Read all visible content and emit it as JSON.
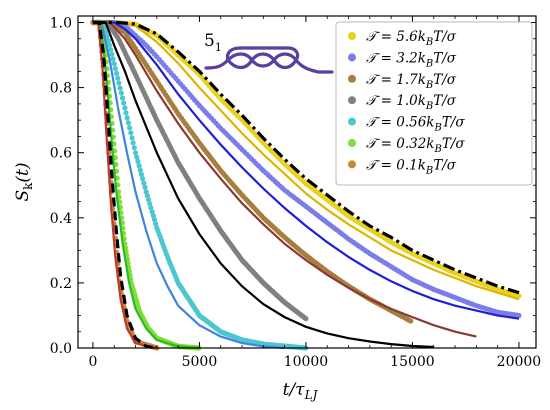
{
  "chart_data": {
    "type": "scatter",
    "xlabel": "t/τ_LJ",
    "ylabel": "S_k(t)",
    "xlim": [
      -700,
      20800
    ],
    "ylim": [
      0,
      1.02
    ],
    "x_ticks": [
      0,
      5000,
      10000,
      15000,
      20000
    ],
    "y_ticks": [
      0.0,
      0.2,
      0.4,
      0.6,
      0.8,
      1.0
    ],
    "x_tick_labels": [
      "0",
      "5000",
      "10000",
      "15000",
      "20000"
    ],
    "y_tick_labels": [
      "0.0",
      "0.2",
      "0.4",
      "0.6",
      "0.8",
      "1.0"
    ],
    "grid": false,
    "legend_position": "top-right",
    "knot_label": "5",
    "knot_label_sub": "1",
    "series": [
      {
        "name": "𝒯 = 5.6k_BT/σ",
        "color": "#e8d21c",
        "x_end": 20000,
        "points": [
          [
            0,
            1.0
          ],
          [
            1000,
            1.0
          ],
          [
            2000,
            0.995
          ],
          [
            3000,
            0.96
          ],
          [
            4000,
            0.9
          ],
          [
            5000,
            0.84
          ],
          [
            6000,
            0.765
          ],
          [
            7000,
            0.7
          ],
          [
            8000,
            0.63
          ],
          [
            9000,
            0.565
          ],
          [
            10000,
            0.505
          ],
          [
            11000,
            0.455
          ],
          [
            12000,
            0.405
          ],
          [
            13000,
            0.365
          ],
          [
            14000,
            0.325
          ],
          [
            15000,
            0.29
          ],
          [
            16000,
            0.26
          ],
          [
            17000,
            0.23
          ],
          [
            18000,
            0.205
          ],
          [
            19000,
            0.18
          ],
          [
            20000,
            0.16
          ]
        ]
      },
      {
        "name": "𝒯 = 3.2k_BT/σ",
        "color": "#7b7de8",
        "x_end": 20000,
        "points": [
          [
            0,
            1.0
          ],
          [
            1000,
            1.0
          ],
          [
            1500,
            0.99
          ],
          [
            2000,
            0.96
          ],
          [
            2500,
            0.93
          ],
          [
            3000,
            0.895
          ],
          [
            4000,
            0.82
          ],
          [
            5000,
            0.745
          ],
          [
            6000,
            0.675
          ],
          [
            7000,
            0.61
          ],
          [
            8000,
            0.545
          ],
          [
            9000,
            0.485
          ],
          [
            10000,
            0.435
          ],
          [
            11000,
            0.385
          ],
          [
            12000,
            0.335
          ],
          [
            13000,
            0.29
          ],
          [
            14000,
            0.25
          ],
          [
            15000,
            0.21
          ],
          [
            16000,
            0.18
          ],
          [
            17000,
            0.155
          ],
          [
            18000,
            0.13
          ],
          [
            19000,
            0.11
          ],
          [
            20000,
            0.1
          ]
        ]
      },
      {
        "name": "𝒯 = 1.7k_BT/σ",
        "color": "#a77e3e",
        "x_end": 15000,
        "points": [
          [
            0,
            1.0
          ],
          [
            800,
            1.0
          ],
          [
            1500,
            0.97
          ],
          [
            2000,
            0.92
          ],
          [
            3000,
            0.82
          ],
          [
            4000,
            0.72
          ],
          [
            5000,
            0.63
          ],
          [
            6000,
            0.545
          ],
          [
            7000,
            0.47
          ],
          [
            8000,
            0.4
          ],
          [
            9000,
            0.34
          ],
          [
            10000,
            0.285
          ],
          [
            11000,
            0.235
          ],
          [
            12000,
            0.19
          ],
          [
            13000,
            0.15
          ],
          [
            14000,
            0.115
          ],
          [
            15000,
            0.08
          ]
        ]
      },
      {
        "name": "𝒯 = 1.0k_BT/σ",
        "color": "#808080",
        "x_end": 10000,
        "points": [
          [
            0,
            1.0
          ],
          [
            700,
            1.0
          ],
          [
            1200,
            0.95
          ],
          [
            2000,
            0.84
          ],
          [
            3000,
            0.7
          ],
          [
            4000,
            0.57
          ],
          [
            5000,
            0.46
          ],
          [
            6000,
            0.36
          ],
          [
            7000,
            0.27
          ],
          [
            8000,
            0.2
          ],
          [
            9000,
            0.14
          ],
          [
            10000,
            0.09
          ]
        ]
      },
      {
        "name": "𝒯 = 0.56k_BT/σ",
        "color": "#4cc6cf",
        "x_end": 10000,
        "points": [
          [
            0,
            1.0
          ],
          [
            500,
            1.0
          ],
          [
            900,
            0.9
          ],
          [
            1200,
            0.82
          ],
          [
            1600,
            0.71
          ],
          [
            2000,
            0.6
          ],
          [
            2500,
            0.48
          ],
          [
            3000,
            0.37
          ],
          [
            3500,
            0.28
          ],
          [
            4000,
            0.2
          ],
          [
            5000,
            0.1
          ],
          [
            6000,
            0.05
          ],
          [
            7000,
            0.025
          ],
          [
            8000,
            0.012
          ],
          [
            10000,
            0.0
          ]
        ]
      },
      {
        "name": "𝒯 = 0.32k_BT/σ",
        "color": "#7ee032",
        "x_end": 5000,
        "points": [
          [
            0,
            1.0
          ],
          [
            400,
            1.0
          ],
          [
            600,
            0.9
          ],
          [
            800,
            0.76
          ],
          [
            1000,
            0.62
          ],
          [
            1200,
            0.48
          ],
          [
            1500,
            0.32
          ],
          [
            1800,
            0.2
          ],
          [
            2200,
            0.11
          ],
          [
            2600,
            0.06
          ],
          [
            3000,
            0.03
          ],
          [
            4000,
            0.005
          ],
          [
            5000,
            0.0
          ]
        ]
      },
      {
        "name": "𝒯 = 0.1k_BT/σ",
        "color": "#c8883a",
        "x_end": 3000,
        "points": [
          [
            0,
            1.0
          ],
          [
            300,
            1.0
          ],
          [
            500,
            0.85
          ],
          [
            700,
            0.65
          ],
          [
            900,
            0.45
          ],
          [
            1100,
            0.3
          ],
          [
            1300,
            0.18
          ],
          [
            1600,
            0.08
          ],
          [
            2000,
            0.02
          ],
          [
            3000,
            0.0
          ]
        ]
      }
    ],
    "fit_curves": [
      {
        "color": "#e0b400",
        "points": [
          [
            0,
            1.0
          ],
          [
            1200,
            1.0
          ],
          [
            2000,
            0.99
          ],
          [
            3000,
            0.94
          ],
          [
            4000,
            0.875
          ],
          [
            5000,
            0.8
          ],
          [
            6000,
            0.73
          ],
          [
            7000,
            0.66
          ],
          [
            8000,
            0.595
          ],
          [
            9000,
            0.535
          ],
          [
            10000,
            0.475
          ],
          [
            11000,
            0.425
          ],
          [
            12000,
            0.38
          ],
          [
            13000,
            0.34
          ],
          [
            14000,
            0.3
          ],
          [
            15000,
            0.27
          ],
          [
            16000,
            0.24
          ],
          [
            17000,
            0.215
          ],
          [
            18000,
            0.19
          ],
          [
            19000,
            0.17
          ],
          [
            20000,
            0.15
          ]
        ]
      },
      {
        "color": "#1f1fd6",
        "points": [
          [
            0,
            1.0
          ],
          [
            1000,
            1.0
          ],
          [
            1500,
            0.98
          ],
          [
            2000,
            0.95
          ],
          [
            3000,
            0.87
          ],
          [
            4000,
            0.78
          ],
          [
            5000,
            0.7
          ],
          [
            6000,
            0.625
          ],
          [
            7000,
            0.555
          ],
          [
            8000,
            0.49
          ],
          [
            9000,
            0.43
          ],
          [
            10000,
            0.375
          ],
          [
            11000,
            0.325
          ],
          [
            12000,
            0.28
          ],
          [
            13000,
            0.24
          ],
          [
            14000,
            0.205
          ],
          [
            15000,
            0.175
          ],
          [
            16000,
            0.15
          ],
          [
            17000,
            0.13
          ],
          [
            18000,
            0.115
          ],
          [
            19000,
            0.1
          ],
          [
            20000,
            0.09
          ]
        ]
      },
      {
        "color": "#8b3a2f",
        "points": [
          [
            0,
            1.0
          ],
          [
            800,
            1.0
          ],
          [
            1500,
            0.95
          ],
          [
            2000,
            0.9
          ],
          [
            3000,
            0.79
          ],
          [
            4000,
            0.69
          ],
          [
            5000,
            0.6
          ],
          [
            6000,
            0.52
          ],
          [
            7000,
            0.445
          ],
          [
            8000,
            0.38
          ],
          [
            9000,
            0.32
          ],
          [
            10000,
            0.27
          ],
          [
            11000,
            0.225
          ],
          [
            12000,
            0.185
          ],
          [
            13000,
            0.15
          ],
          [
            14000,
            0.12
          ],
          [
            15000,
            0.095
          ],
          [
            16000,
            0.07
          ],
          [
            17000,
            0.05
          ],
          [
            18000,
            0.035
          ]
        ]
      },
      {
        "color": "#000000",
        "points": [
          [
            0,
            1.0
          ],
          [
            600,
            1.0
          ],
          [
            1000,
            0.93
          ],
          [
            1500,
            0.85
          ],
          [
            2000,
            0.76
          ],
          [
            3000,
            0.6
          ],
          [
            4000,
            0.46
          ],
          [
            5000,
            0.35
          ],
          [
            6000,
            0.26
          ],
          [
            7000,
            0.19
          ],
          [
            8000,
            0.135
          ],
          [
            9000,
            0.095
          ],
          [
            10000,
            0.065
          ],
          [
            11000,
            0.045
          ],
          [
            12000,
            0.03
          ],
          [
            13000,
            0.02
          ],
          [
            14000,
            0.012
          ],
          [
            15000,
            0.006
          ],
          [
            16000,
            0.003
          ]
        ]
      },
      {
        "color": "#3e84e0",
        "points": [
          [
            0,
            1.0
          ],
          [
            400,
            1.0
          ],
          [
            800,
            0.88
          ],
          [
            1200,
            0.73
          ],
          [
            1600,
            0.6
          ],
          [
            2000,
            0.48
          ],
          [
            2500,
            0.36
          ],
          [
            3000,
            0.26
          ],
          [
            3500,
            0.19
          ],
          [
            4000,
            0.13
          ],
          [
            5000,
            0.07
          ],
          [
            6000,
            0.035
          ],
          [
            7000,
            0.015
          ],
          [
            8000,
            0.005
          ],
          [
            9000,
            0.0
          ]
        ]
      },
      {
        "color": "#2eb82e",
        "points": [
          [
            0,
            1.0
          ],
          [
            300,
            1.0
          ],
          [
            500,
            0.92
          ],
          [
            700,
            0.78
          ],
          [
            900,
            0.62
          ],
          [
            1100,
            0.48
          ],
          [
            1400,
            0.32
          ],
          [
            1700,
            0.2
          ],
          [
            2000,
            0.12
          ],
          [
            2500,
            0.06
          ],
          [
            3000,
            0.025
          ],
          [
            4000,
            0.005
          ],
          [
            5000,
            0.0
          ]
        ]
      },
      {
        "color": "#c0392b",
        "points": [
          [
            0,
            1.0
          ],
          [
            250,
            1.0
          ],
          [
            450,
            0.86
          ],
          [
            650,
            0.64
          ],
          [
            850,
            0.44
          ],
          [
            1050,
            0.28
          ],
          [
            1300,
            0.15
          ],
          [
            1600,
            0.06
          ],
          [
            2000,
            0.015
          ],
          [
            3000,
            0.0
          ]
        ]
      }
    ],
    "reference_curves": [
      {
        "style": "dash-dot",
        "color": "#000000",
        "points": [
          [
            0,
            1.0
          ],
          [
            1200,
            1.0
          ],
          [
            2000,
            0.995
          ],
          [
            3000,
            0.965
          ],
          [
            4000,
            0.91
          ],
          [
            5000,
            0.85
          ],
          [
            6000,
            0.78
          ],
          [
            7000,
            0.715
          ],
          [
            8000,
            0.645
          ],
          [
            9000,
            0.58
          ],
          [
            10000,
            0.52
          ],
          [
            11000,
            0.47
          ],
          [
            12000,
            0.42
          ],
          [
            13000,
            0.375
          ],
          [
            14000,
            0.34
          ],
          [
            15000,
            0.3
          ],
          [
            16000,
            0.27
          ],
          [
            17000,
            0.24
          ],
          [
            18000,
            0.215
          ],
          [
            19000,
            0.19
          ],
          [
            20000,
            0.17
          ]
        ]
      },
      {
        "style": "dashed",
        "color": "#000000",
        "points": [
          [
            0,
            1.0
          ],
          [
            300,
            1.0
          ],
          [
            500,
            0.9
          ],
          [
            700,
            0.72
          ],
          [
            900,
            0.52
          ],
          [
            1100,
            0.36
          ],
          [
            1300,
            0.22
          ],
          [
            1600,
            0.1
          ],
          [
            2000,
            0.03
          ],
          [
            2500,
            0.005
          ],
          [
            3000,
            0.0
          ]
        ]
      }
    ]
  }
}
